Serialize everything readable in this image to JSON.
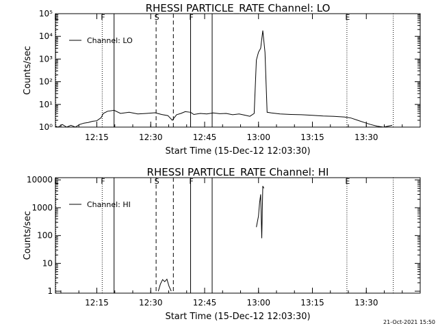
{
  "chart_data": [
    {
      "type": "line",
      "title": "RHESSI PARTICLE_RATE Channel: LO",
      "xlabel": "Start Time (15-Dec-12 12:03:30)",
      "ylabel": "Counts/sec",
      "yscale": "log",
      "ylim": [
        1,
        100000
      ],
      "xlim": [
        12.058,
        13.75
      ],
      "xticks": [
        12.25,
        12.5,
        12.75,
        13.0,
        13.25,
        13.5
      ],
      "xtick_labels": [
        "12:15",
        "12:30",
        "12:45",
        "13:00",
        "13:15",
        "13:30"
      ],
      "yticks": [
        1,
        10,
        100,
        1000,
        10000,
        100000
      ],
      "ytick_labels": [
        "10⁰",
        "10¹",
        "10²",
        "10³",
        "10⁴",
        "10⁵"
      ],
      "legend": {
        "label": "Channel: LO",
        "placement": "top-left"
      },
      "flag_lines": [
        {
          "x": 12.06,
          "label": "E",
          "style": "dotted"
        },
        {
          "x": 12.275,
          "label": "F",
          "style": "dotted"
        },
        {
          "x": 12.33,
          "label": "",
          "style": "solid"
        },
        {
          "x": 12.525,
          "label": "S",
          "style": "dashed"
        },
        {
          "x": 12.605,
          "label": "",
          "style": "dashed"
        },
        {
          "x": 12.685,
          "label": "F",
          "style": "solid"
        },
        {
          "x": 12.785,
          "label": "",
          "style": "solid"
        },
        {
          "x": 13.41,
          "label": "E",
          "style": "dotted"
        },
        {
          "x": 13.625,
          "label": "",
          "style": "dotted"
        }
      ],
      "series": [
        {
          "x": [
            12.058,
            12.07,
            12.09,
            12.11,
            12.13,
            12.15,
            12.17,
            12.19,
            12.21,
            12.23,
            12.25,
            12.27,
            12.28,
            12.3,
            12.33,
            12.36,
            12.4,
            12.44,
            12.48,
            12.52,
            12.55,
            12.58,
            12.6,
            12.62,
            12.64,
            12.66,
            12.685,
            12.7,
            12.73,
            12.76,
            12.79,
            12.82,
            12.85,
            12.88,
            12.91,
            12.94,
            12.96,
            12.98,
            12.99,
            13.0,
            13.01,
            13.02,
            13.03,
            13.04,
            13.06,
            13.1,
            13.15,
            13.2,
            13.25,
            13.3,
            13.35,
            13.4,
            13.43,
            13.46,
            13.49,
            13.52,
            13.55,
            13.58,
            13.62
          ],
          "values": [
            1.1,
            1.0,
            1.3,
            1.0,
            1.2,
            1.0,
            1.3,
            1.5,
            1.6,
            1.8,
            1.9,
            2.6,
            4.0,
            5.0,
            5.5,
            4.0,
            4.5,
            3.8,
            4.0,
            4.3,
            3.6,
            3.2,
            2.0,
            3.5,
            4.0,
            4.8,
            4.5,
            3.6,
            4.0,
            3.8,
            4.2,
            3.9,
            4.0,
            3.5,
            3.8,
            3.3,
            3.0,
            4.0,
            900,
            2000,
            3000,
            18000,
            2000,
            4.5,
            4.2,
            3.8,
            3.6,
            3.5,
            3.3,
            3.1,
            3.0,
            2.8,
            2.5,
            2.0,
            1.6,
            1.3,
            1.1,
            1.0,
            1.2
          ]
        }
      ]
    },
    {
      "type": "line",
      "title": "RHESSI PARTICLE_RATE Channel: HI",
      "xlabel": "Start Time (15-Dec-12 12:03:30)",
      "ylabel": "Counts/sec",
      "yscale": "log",
      "ylim": [
        0.85,
        12000
      ],
      "xlim": [
        12.058,
        13.75
      ],
      "xticks": [
        12.25,
        12.5,
        12.75,
        13.0,
        13.25,
        13.5
      ],
      "xtick_labels": [
        "12:15",
        "12:30",
        "12:45",
        "13:00",
        "13:15",
        "13:30"
      ],
      "yticks": [
        1,
        10,
        100,
        1000,
        10000
      ],
      "ytick_labels": [
        "1",
        "10",
        "100",
        "1000",
        "10000"
      ],
      "legend": {
        "label": "Channel: HI",
        "placement": "top-left"
      },
      "flag_lines": [
        {
          "x": 12.06,
          "label": "E",
          "style": "dotted"
        },
        {
          "x": 12.275,
          "label": "F",
          "style": "dotted"
        },
        {
          "x": 12.33,
          "label": "",
          "style": "solid"
        },
        {
          "x": 12.525,
          "label": "S",
          "style": "dashed"
        },
        {
          "x": 12.605,
          "label": "",
          "style": "dashed"
        },
        {
          "x": 12.685,
          "label": "F",
          "style": "solid"
        },
        {
          "x": 12.785,
          "label": "",
          "style": "solid"
        },
        {
          "x": 13.41,
          "label": "E",
          "style": "dotted"
        },
        {
          "x": 13.625,
          "label": "",
          "style": "dotted"
        }
      ],
      "series": [
        {
          "segments": [
            {
              "x": [
                12.535,
                12.545,
                12.555,
                12.565,
                12.575,
                12.585,
                12.595
              ],
              "values": [
                1.0,
                1.8,
                2.6,
                2.2,
                2.7,
                1.5,
                1.0
              ]
            },
            {
              "x": [
                12.99,
                13.0,
                13.005,
                13.01,
                13.015,
                13.02,
                13.025
              ],
              "values": [
                200,
                500,
                1500,
                3000,
                80,
                6000,
                5000
              ]
            }
          ]
        }
      ]
    }
  ],
  "footer": {
    "timestamp": "21-Oct-2021 15:50"
  }
}
